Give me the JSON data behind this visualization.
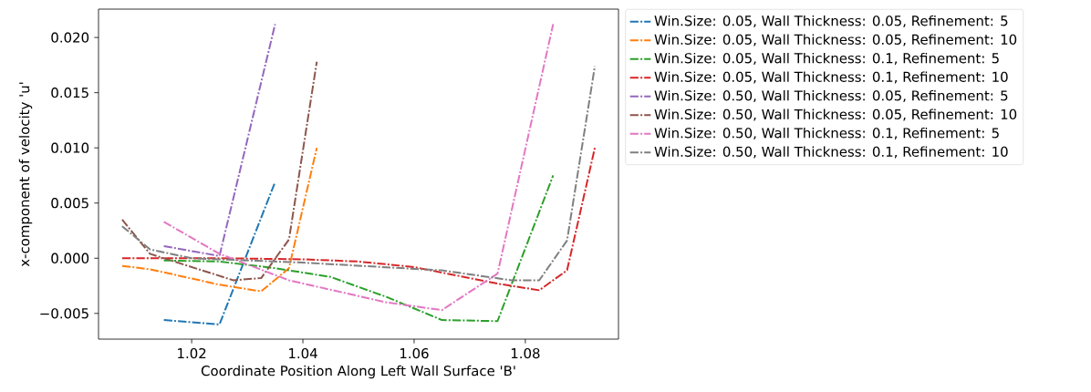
{
  "chart_data": {
    "type": "line",
    "xlabel": "Coordinate Position Along Left Wall Surface 'B'",
    "ylabel": "x-component of velocity 'u'",
    "xlim": [
      1.00325,
      1.09675
    ],
    "ylim": [
      -0.00733,
      0.02257
    ],
    "xticks": [
      1.02,
      1.04,
      1.06,
      1.08
    ],
    "yticks": [
      {
        "value": -0.005,
        "label": "−0.005"
      },
      {
        "value": 0,
        "label": "0.000"
      },
      {
        "value": 0.005,
        "label": "0.005"
      },
      {
        "value": 0.01,
        "label": "0.010"
      },
      {
        "value": 0.015,
        "label": "0.015"
      },
      {
        "value": 0.02,
        "label": "0.020"
      }
    ],
    "legend": "top right",
    "line_style": "dashdot",
    "grid": false,
    "series": [
      {
        "name": "Win.Size: 0.05, Wall Thickness: 0.05, Refinement: 5",
        "color": "#1f77b4",
        "x": [
          1.015,
          1.025,
          1.035
        ],
        "values": [
          -0.0056,
          -0.006,
          0.0069
        ]
      },
      {
        "name": "Win.Size: 0.05, Wall Thickness: 0.05, Refinement: 10",
        "color": "#ff7f0e",
        "x": [
          1.0075,
          1.0125,
          1.025,
          1.0325,
          1.0375,
          1.0425
        ],
        "values": [
          -0.0007,
          -0.001,
          -0.0024,
          -0.003,
          -0.0009,
          0.01
        ]
      },
      {
        "name": "Win.Size: 0.05, Wall Thickness: 0.1, Refinement: 5",
        "color": "#2ca02c",
        "x": [
          1.015,
          1.025,
          1.035,
          1.045,
          1.055,
          1.065,
          1.075,
          1.085
        ],
        "values": [
          -0.0002,
          -0.0003,
          -0.0009,
          -0.0017,
          -0.0035,
          -0.0056,
          -0.0057,
          0.0075
        ]
      },
      {
        "name": "Win.Size: 0.05, Wall Thickness: 0.1, Refinement: 10",
        "color": "#d62728",
        "x": [
          1.0075,
          1.025,
          1.04,
          1.05,
          1.06,
          1.075,
          1.0825,
          1.0875,
          1.0925
        ],
        "values": [
          0.0,
          0.0,
          -0.0001,
          -0.0003,
          -0.0008,
          -0.0023,
          -0.0029,
          -0.0011,
          0.01
        ]
      },
      {
        "name": "Win.Size: 0.50, Wall Thickness: 0.05, Refinement: 5",
        "color": "#9467bd",
        "x": [
          1.015,
          1.025,
          1.035
        ],
        "values": [
          0.0011,
          0.0002,
          0.0212
        ]
      },
      {
        "name": "Win.Size: 0.50, Wall Thickness: 0.05, Refinement: 10",
        "color": "#8c564b",
        "x": [
          1.0075,
          1.0125,
          1.0275,
          1.0325,
          1.0375,
          1.0425
        ],
        "values": [
          0.0035,
          0.0004,
          -0.002,
          -0.0018,
          0.0017,
          0.0178
        ]
      },
      {
        "name": "Win.Size: 0.50, Wall Thickness: 0.1, Refinement: 5",
        "color": "#e377c2",
        "x": [
          1.015,
          1.025,
          1.0375,
          1.055,
          1.065,
          1.075,
          1.085
        ],
        "values": [
          0.0033,
          0.0004,
          -0.002,
          -0.004,
          -0.0047,
          -0.0014,
          0.0212
        ]
      },
      {
        "name": "Win.Size: 0.50, Wall Thickness: 0.1, Refinement: 10",
        "color": "#7f7f7f",
        "x": [
          1.0075,
          1.0125,
          1.02,
          1.04,
          1.065,
          1.0775,
          1.0825,
          1.0875,
          1.0925
        ],
        "values": [
          0.0029,
          0.0008,
          0.0,
          -0.0004,
          -0.0011,
          -0.002,
          -0.002,
          0.0016,
          0.0174
        ]
      }
    ]
  }
}
